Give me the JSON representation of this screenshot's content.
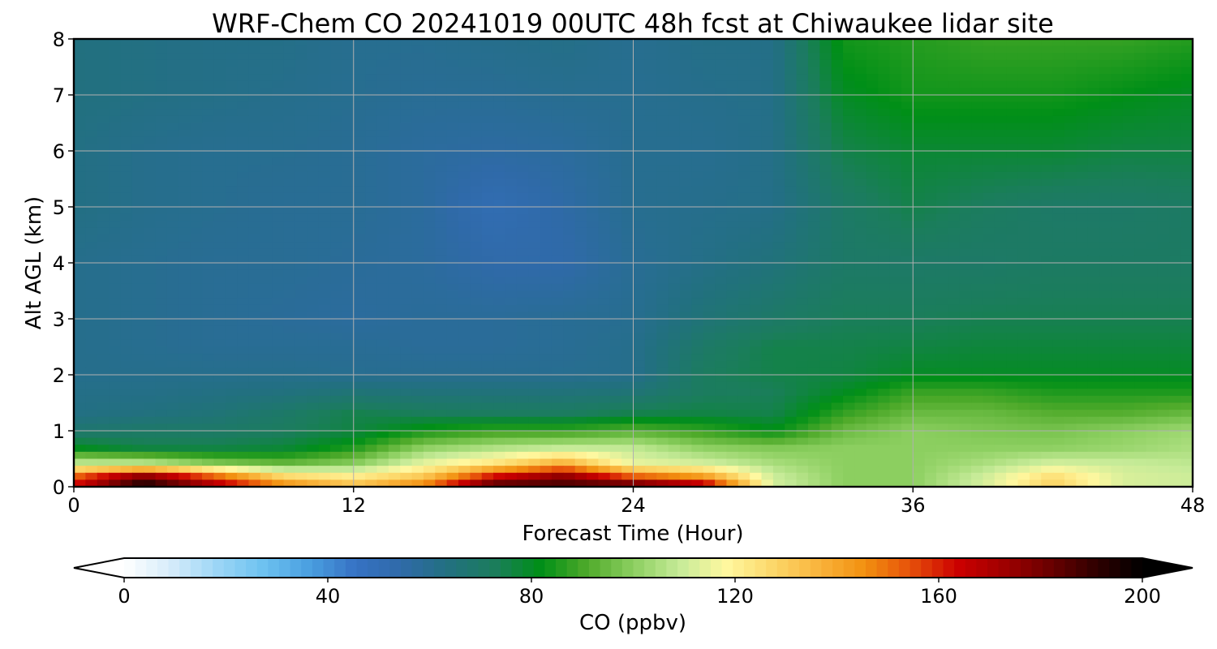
{
  "chart_data": {
    "type": "heatmap",
    "title": "WRF-Chem CO  20241019 00UTC 48h fcst at Chiwaukee lidar site",
    "xlabel": "Forecast Time (Hour)",
    "ylabel": "Alt AGL (km)",
    "xlim": [
      0,
      48
    ],
    "ylim": [
      0,
      8
    ],
    "x_ticks": [
      "0",
      "12",
      "24",
      "36",
      "48"
    ],
    "y_ticks": [
      "0",
      "1",
      "2",
      "3",
      "4",
      "5",
      "6",
      "7",
      "8"
    ],
    "grid": true,
    "x": [
      0,
      3,
      6,
      9,
      12,
      15,
      18,
      21,
      24,
      27,
      30,
      33,
      36,
      39,
      42,
      45,
      48
    ],
    "y": [
      0,
      0.2,
      0.4,
      0.7,
      1.0,
      1.3,
      1.7,
      2.0,
      2.5,
      3.0,
      4.0,
      5.0,
      6.0,
      7.0,
      8.0
    ],
    "z": [
      [
        165,
        200,
        175,
        150,
        135,
        150,
        190,
        190,
        190,
        175,
        112,
        100,
        100,
        112,
        130,
        112,
        110
      ],
      [
        150,
        175,
        150,
        125,
        120,
        130,
        160,
        175,
        150,
        140,
        110,
        100,
        100,
        110,
        125,
        112,
        110
      ],
      [
        110,
        110,
        100,
        95,
        100,
        115,
        125,
        140,
        115,
        112,
        105,
        100,
        100,
        105,
        112,
        110,
        108
      ],
      [
        80,
        75,
        75,
        77,
        85,
        100,
        105,
        108,
        108,
        100,
        98,
        100,
        100,
        100,
        100,
        102,
        105
      ],
      [
        68,
        70,
        70,
        72,
        76,
        84,
        88,
        88,
        92,
        88,
        82,
        95,
        100,
        98,
        97,
        100,
        103
      ],
      [
        63,
        64,
        66,
        70,
        75,
        73,
        72,
        72,
        75,
        76,
        75,
        88,
        95,
        95,
        92,
        92,
        95
      ],
      [
        62,
        62,
        63,
        64,
        66,
        65,
        65,
        65,
        66,
        72,
        73,
        80,
        88,
        88,
        85,
        85,
        85
      ],
      [
        61,
        61,
        61,
        61,
        60,
        60,
        60,
        60,
        61,
        72,
        75,
        76,
        80,
        80,
        80,
        80,
        80
      ],
      [
        61,
        60,
        59,
        59,
        59,
        58,
        58,
        59,
        61,
        70,
        75,
        75,
        76,
        77,
        77,
        77,
        77
      ],
      [
        61,
        60,
        59,
        58,
        57,
        58,
        58,
        59,
        60,
        66,
        70,
        73,
        73,
        74,
        74,
        74,
        74
      ],
      [
        61,
        60,
        59,
        59,
        58,
        57,
        54,
        54,
        59,
        62,
        65,
        70,
        70,
        70,
        71,
        71,
        71
      ],
      [
        63,
        61,
        60,
        59,
        59,
        57,
        51,
        55,
        60,
        61,
        62,
        70,
        75,
        72,
        70,
        70,
        71
      ],
      [
        63,
        61,
        60,
        60,
        59,
        57,
        56,
        57,
        60,
        60,
        62,
        75,
        78,
        78,
        78,
        76,
        76
      ],
      [
        64,
        63,
        62,
        61,
        60,
        59,
        59,
        60,
        60,
        61,
        62,
        80,
        84,
        84,
        84,
        82,
        80
      ],
      [
        64,
        63,
        62,
        62,
        60,
        60,
        61,
        62,
        60,
        62,
        62,
        84,
        86,
        88,
        88,
        88,
        86
      ]
    ],
    "colorbar": {
      "label": "CO  (ppbv)",
      "min": 0,
      "max": 200,
      "ticks": [
        "0",
        "40",
        "80",
        "120",
        "160",
        "200"
      ],
      "extend": "both",
      "colors": [
        "#ffffff",
        "#d6ecfa",
        "#9dd6f6",
        "#6dc2f0",
        "#4a9fe0",
        "#3672c4",
        "#2f6aa8",
        "#227080",
        "#1b7d5c",
        "#008f17",
        "#4faa2a",
        "#8ccf60",
        "#c6eb98",
        "#fff8a0",
        "#fcd86a",
        "#f9b43c",
        "#f29010",
        "#e6500a",
        "#cc0000",
        "#a00000",
        "#6a0000",
        "#300000",
        "#000000"
      ]
    }
  }
}
